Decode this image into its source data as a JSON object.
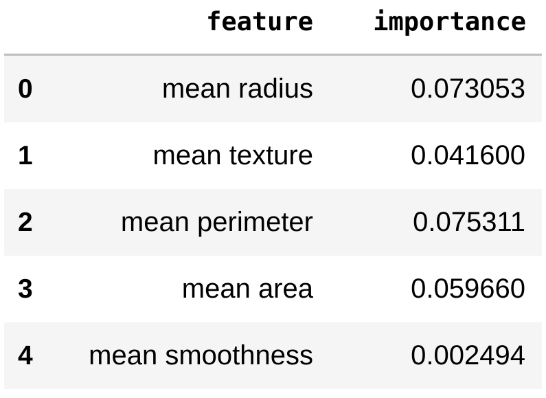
{
  "table": {
    "columns": [
      "feature",
      "importance"
    ],
    "rows": [
      {
        "index": "0",
        "feature": "mean radius",
        "importance": "0.073053"
      },
      {
        "index": "1",
        "feature": "mean texture",
        "importance": "0.041600"
      },
      {
        "index": "2",
        "feature": "mean perimeter",
        "importance": "0.075311"
      },
      {
        "index": "3",
        "feature": "mean area",
        "importance": "0.059660"
      },
      {
        "index": "4",
        "feature": "mean smoothness",
        "importance": "0.002494"
      }
    ]
  }
}
